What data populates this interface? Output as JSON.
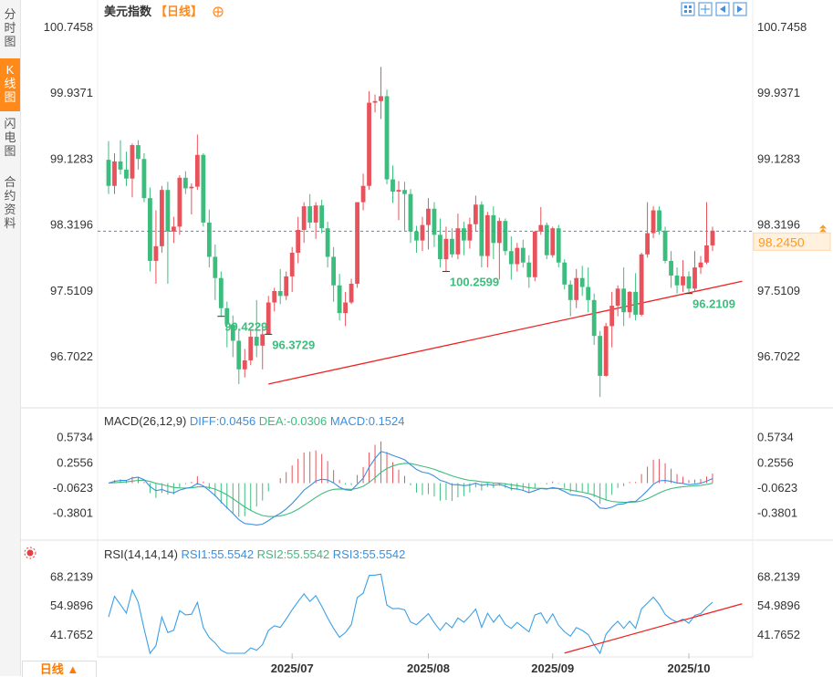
{
  "sidebar": {
    "tabs": [
      {
        "label": "分时图",
        "active": false
      },
      {
        "label": "K线图",
        "active": true
      },
      {
        "label": "闪电图",
        "active": false
      },
      {
        "label": "合约资料",
        "active": false
      }
    ]
  },
  "header": {
    "title": "美元指数",
    "period_label": "【日线】",
    "toolbar_icons": [
      "grid-icon",
      "split-icon",
      "prev-icon",
      "next-icon"
    ]
  },
  "bottom": {
    "period_button": "日线 ▲"
  },
  "colors": {
    "up": "#e8535b",
    "down": "#3dbd7d",
    "diff": "#3a8fe0",
    "dea": "#3dbd7d",
    "trend": "#ee2222",
    "last_price_bg": "#fff1de",
    "last_price_text": "#ff9a1f",
    "high_label": "#e8535b",
    "low_label": "#3dbd7d"
  },
  "chart_data": [
    {
      "type": "candlestick",
      "title": "美元指数",
      "y_ticks": [
        "100.7458",
        "99.9371",
        "99.1283",
        "98.3196",
        "97.5109",
        "96.7022"
      ],
      "ylim": [
        96.1,
        100.8
      ],
      "last_price": "98.2450",
      "annotations": [
        {
          "label": "99.4229",
          "index": 19
        },
        {
          "label": "100.2599",
          "index": 57
        },
        {
          "label": "96.3729",
          "index": 27
        },
        {
          "label": "96.2109",
          "index": 98
        }
      ],
      "x_ticks": [
        {
          "label": "2025/07",
          "index": 31
        },
        {
          "label": "2025/08",
          "index": 54
        },
        {
          "label": "2025/09",
          "index": 75
        },
        {
          "label": "2025/10",
          "index": 98
        }
      ],
      "trendline": {
        "from": {
          "index": 27,
          "value": 96.37
        },
        "to": {
          "index": 107,
          "value": 97.63
        }
      },
      "ohlc": [
        [
          99.12,
          99.35,
          98.7,
          98.8
        ],
        [
          98.8,
          99.2,
          98.7,
          99.1
        ],
        [
          99.1,
          99.36,
          98.94,
          99.0
        ],
        [
          99.0,
          99.22,
          98.8,
          98.89
        ],
        [
          98.89,
          99.32,
          98.66,
          99.3
        ],
        [
          99.3,
          99.36,
          99.0,
          99.13
        ],
        [
          99.13,
          99.2,
          98.6,
          98.65
        ],
        [
          98.65,
          98.78,
          97.75,
          97.88
        ],
        [
          97.88,
          98.5,
          97.6,
          98.06
        ],
        [
          98.06,
          98.8,
          97.98,
          98.75
        ],
        [
          98.75,
          98.85,
          97.6,
          98.24
        ],
        [
          98.24,
          98.42,
          98.1,
          98.3
        ],
        [
          98.3,
          98.93,
          98.2,
          98.9
        ],
        [
          98.9,
          98.98,
          98.7,
          98.77
        ],
        [
          98.77,
          98.83,
          98.45,
          98.79
        ],
        [
          98.79,
          99.43,
          98.75,
          99.18
        ],
        [
          99.18,
          99.2,
          98.3,
          98.35
        ],
        [
          98.35,
          98.51,
          97.8,
          97.93
        ],
        [
          97.93,
          98.08,
          97.4,
          97.67
        ],
        [
          97.67,
          97.75,
          97.2,
          97.3
        ],
        [
          97.3,
          97.38,
          96.82,
          97.1
        ],
        [
          97.1,
          97.21,
          96.7,
          96.9
        ],
        [
          96.9,
          97.05,
          96.37,
          96.55
        ],
        [
          96.55,
          96.8,
          96.45,
          96.66
        ],
        [
          96.66,
          97.03,
          96.6,
          96.95
        ],
        [
          96.95,
          97.4,
          96.7,
          96.84
        ],
        [
          96.84,
          97.08,
          96.55,
          96.98
        ],
        [
          96.98,
          97.45,
          96.98,
          97.37
        ],
        [
          97.37,
          97.55,
          97.26,
          97.51
        ],
        [
          97.51,
          97.78,
          97.35,
          97.45
        ],
        [
          97.45,
          97.75,
          97.4,
          97.69
        ],
        [
          97.69,
          98.05,
          97.5,
          97.98
        ],
        [
          97.98,
          98.42,
          97.85,
          98.26
        ],
        [
          98.26,
          98.6,
          98.1,
          98.55
        ],
        [
          98.55,
          98.7,
          98.28,
          98.35
        ],
        [
          98.35,
          98.6,
          98.15,
          98.56
        ],
        [
          98.56,
          98.63,
          98.22,
          98.28
        ],
        [
          98.28,
          98.36,
          97.8,
          97.93
        ],
        [
          97.93,
          98.05,
          97.38,
          97.58
        ],
        [
          97.58,
          97.72,
          97.15,
          97.24
        ],
        [
          97.24,
          97.5,
          97.08,
          97.37
        ],
        [
          97.37,
          97.66,
          97.35,
          97.6
        ],
        [
          97.6,
          98.6,
          97.55,
          98.6
        ],
        [
          98.6,
          98.95,
          98.5,
          98.8
        ],
        [
          98.8,
          99.96,
          98.75,
          99.82
        ],
        [
          99.82,
          99.92,
          99.7,
          99.84
        ],
        [
          99.84,
          100.26,
          99.62,
          99.9
        ],
        [
          99.9,
          99.98,
          98.82,
          98.88
        ],
        [
          98.88,
          99.05,
          98.59,
          98.73
        ],
        [
          98.73,
          98.86,
          98.38,
          98.75
        ],
        [
          98.75,
          98.85,
          98.25,
          98.7
        ],
        [
          98.7,
          98.76,
          98.1,
          98.24
        ],
        [
          98.24,
          98.31,
          97.98,
          98.13
        ],
        [
          98.13,
          98.42,
          98.0,
          98.32
        ],
        [
          98.32,
          98.65,
          98.02,
          98.52
        ],
        [
          98.52,
          98.6,
          98.05,
          98.2
        ],
        [
          98.2,
          98.4,
          97.8,
          97.9
        ],
        [
          97.9,
          98.3,
          97.75,
          98.15
        ],
        [
          98.15,
          98.28,
          97.92,
          97.96
        ],
        [
          97.96,
          98.46,
          97.9,
          98.28
        ],
        [
          98.28,
          98.36,
          97.95,
          98.13
        ],
        [
          98.13,
          98.41,
          98.03,
          98.33
        ],
        [
          98.33,
          98.68,
          98.24,
          98.57
        ],
        [
          98.57,
          98.61,
          97.8,
          97.94
        ],
        [
          97.94,
          98.48,
          97.8,
          98.44
        ],
        [
          98.44,
          98.55,
          97.9,
          98.1
        ],
        [
          98.1,
          98.41,
          97.65,
          98.37
        ],
        [
          98.37,
          98.4,
          97.95,
          98.0
        ],
        [
          98.0,
          98.18,
          97.65,
          97.84
        ],
        [
          97.84,
          98.1,
          97.75,
          98.04
        ],
        [
          98.04,
          98.14,
          97.8,
          97.86
        ],
        [
          97.86,
          97.95,
          97.55,
          97.68
        ],
        [
          97.68,
          98.25,
          97.63,
          98.24
        ],
        [
          98.24,
          98.54,
          98.2,
          98.32
        ],
        [
          98.32,
          98.35,
          97.9,
          97.95
        ],
        [
          97.95,
          98.3,
          97.92,
          98.28
        ],
        [
          98.28,
          98.32,
          97.8,
          97.86
        ],
        [
          97.86,
          97.9,
          97.53,
          97.59
        ],
        [
          97.59,
          97.64,
          97.2,
          97.4
        ],
        [
          97.4,
          97.78,
          97.3,
          97.67
        ],
        [
          97.67,
          97.82,
          97.45,
          97.56
        ],
        [
          97.56,
          97.8,
          97.25,
          97.4
        ],
        [
          97.4,
          97.48,
          96.85,
          96.96
        ],
        [
          96.96,
          97.02,
          96.21,
          96.47
        ],
        [
          96.47,
          97.12,
          96.46,
          97.08
        ],
        [
          97.08,
          97.5,
          96.82,
          97.33
        ],
        [
          97.33,
          97.58,
          97.2,
          97.54
        ],
        [
          97.54,
          97.8,
          97.08,
          97.25
        ],
        [
          97.25,
          97.51,
          97.18,
          97.5
        ],
        [
          97.5,
          97.73,
          97.15,
          97.22
        ],
        [
          97.22,
          97.98,
          97.2,
          97.96
        ],
        [
          97.96,
          98.6,
          97.92,
          98.22
        ],
        [
          98.22,
          98.55,
          98.16,
          98.5
        ],
        [
          98.5,
          98.55,
          98.2,
          98.25
        ],
        [
          98.25,
          98.3,
          97.85,
          97.88
        ],
        [
          97.88,
          98.0,
          97.55,
          97.7
        ],
        [
          97.7,
          97.8,
          97.48,
          97.58
        ],
        [
          97.58,
          97.89,
          97.5,
          97.69
        ],
        [
          97.69,
          97.75,
          97.48,
          97.54
        ],
        [
          97.54,
          98.0,
          97.5,
          97.8
        ],
        [
          97.8,
          97.94,
          97.72,
          97.86
        ],
        [
          97.86,
          98.6,
          97.84,
          98.07
        ],
        [
          98.07,
          98.3,
          98.0,
          98.25
        ]
      ]
    },
    {
      "type": "line",
      "title": "MACD(26,12,9)",
      "legend": [
        {
          "name": "DIFF:0.0456",
          "color": "#3a8fe0"
        },
        {
          "name": "DEA:-0.0306",
          "color": "#3dbd7d"
        },
        {
          "name": "MACD:0.1524",
          "color": "#3a8fe0"
        }
      ],
      "y_ticks": [
        "0.5734",
        "0.2556",
        "-0.0623",
        "-0.3801"
      ],
      "ylim": [
        -0.51,
        0.66
      ]
    },
    {
      "type": "line",
      "title": "RSI(14,14,14)",
      "legend": [
        {
          "name": "RSI1:55.5542",
          "color": "#3a8fe0"
        },
        {
          "name": "RSI2:55.5542",
          "color": "#3dbd7d"
        },
        {
          "name": "RSI3:55.5542",
          "color": "#3a8fe0"
        }
      ],
      "y_ticks": [
        "68.2139",
        "54.9896",
        "41.7652"
      ],
      "ylim": [
        33.5,
        72.5
      ],
      "trendline": {
        "from": {
          "index": 77,
          "value": 33.6
        },
        "to": {
          "index": 107,
          "value": 56.0
        }
      }
    }
  ]
}
